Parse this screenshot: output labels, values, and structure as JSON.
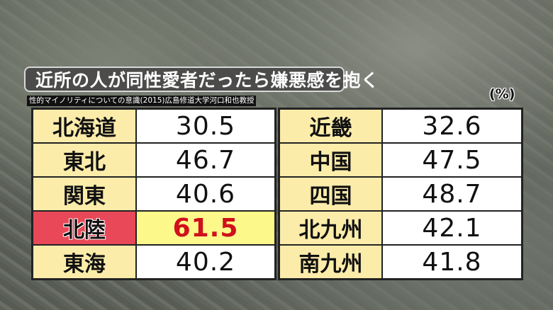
{
  "title": "近所の人が同性愛者だったら嫌悪感を抱く",
  "source": "性的マイノリティについての意識(2015)広島修道大学河口和也教授",
  "unit": "(%)",
  "colors": {
    "highlight_label_bg": "#e84858",
    "highlight_value_bg": "#fcf98a",
    "highlight_value_text": "#d0101c",
    "label_bg": "#fcecaa"
  },
  "chart_data": {
    "type": "table",
    "title": "近所の人が同性愛者だったら嫌悪感を抱く",
    "unit": "%",
    "highlighted": "北陸",
    "left": [
      {
        "region": "北海道",
        "value": "30.5"
      },
      {
        "region": "東北",
        "value": "46.7"
      },
      {
        "region": "関東",
        "value": "40.6"
      },
      {
        "region": "北陸",
        "value": "61.5"
      },
      {
        "region": "東海",
        "value": "40.2"
      }
    ],
    "right": [
      {
        "region": "近畿",
        "value": "32.6"
      },
      {
        "region": "中国",
        "value": "47.5"
      },
      {
        "region": "四国",
        "value": "48.7"
      },
      {
        "region": "北九州",
        "value": "42.1"
      },
      {
        "region": "南九州",
        "value": "41.8"
      }
    ]
  }
}
